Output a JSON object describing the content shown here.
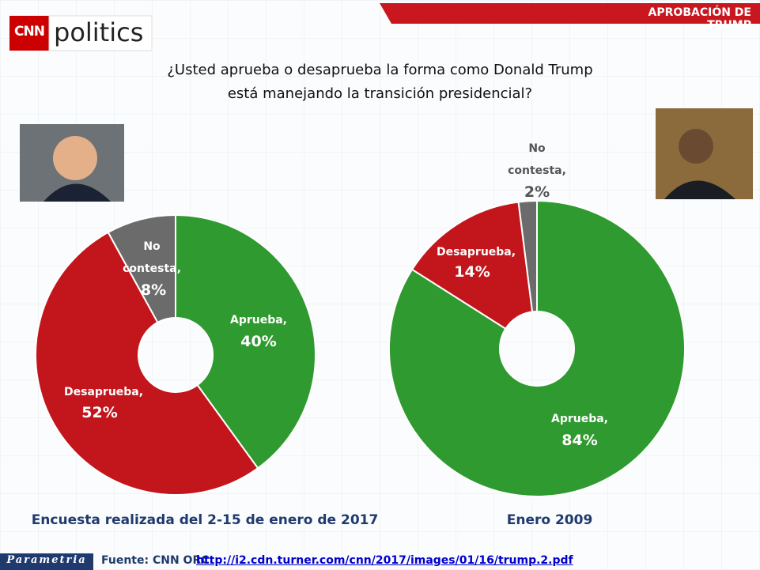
{
  "header": {
    "tag": "APROBACIÓN DE TRUMP",
    "logo_brand": "CNN",
    "logo_section": "politics"
  },
  "question": {
    "line1": "¿Usted aprueba o desaprueba la forma como Donald Trump",
    "line2": "está manejando la transición presidencial?"
  },
  "chart_data": [
    {
      "type": "pie",
      "title": "Encuesta realizada del 2-15 de enero de 2017",
      "categories": [
        "Aprueba,",
        "Desaprueba,",
        "No contesta,"
      ],
      "values": [
        40,
        52,
        8
      ],
      "value_labels": [
        "40%",
        "52%",
        "8%"
      ],
      "colors": [
        "#2f9a2f",
        "#c3161c",
        "#6b6b6b"
      ]
    },
    {
      "type": "pie",
      "title": "Enero 2009",
      "categories": [
        "Aprueba,",
        "Desaprueba,",
        "No contesta,"
      ],
      "values": [
        84,
        14,
        2
      ],
      "value_labels": [
        "84%",
        "14%",
        "2%"
      ],
      "colors": [
        "#2f9a2f",
        "#c3161c",
        "#6b6b6b"
      ]
    }
  ],
  "footer": {
    "brand": "Parametria",
    "source": "Fuente: CNN ORC.",
    "link": "http://i2.cdn.turner.com/cnn/2017/images/01/16/trump.2.pdf"
  }
}
